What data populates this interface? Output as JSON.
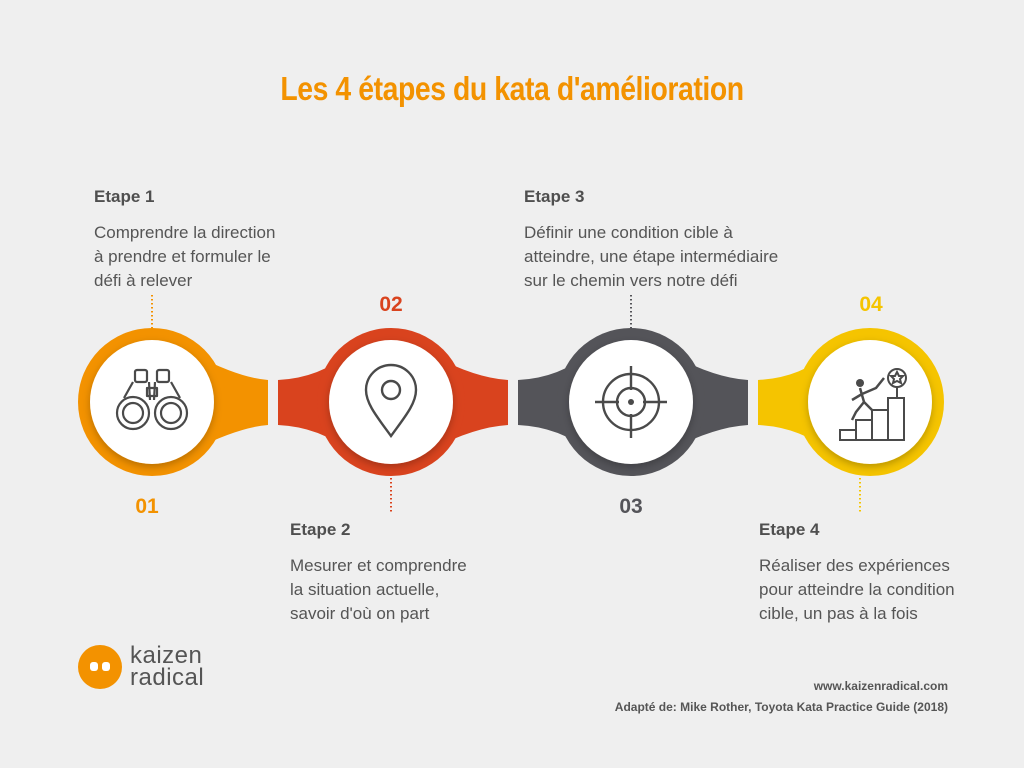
{
  "title": "Les 4 étapes du kata d'amélioration",
  "steps": [
    {
      "number": "01",
      "label": "Etape 1",
      "text": "Comprendre la direction\nà prendre et formuler le\ndéfi à relever",
      "color": "#f39200",
      "icon": "binoculars-icon"
    },
    {
      "number": "02",
      "label": "Etape 2",
      "text": "Mesurer et comprendre\nla situation actuelle,\nsavoir d'où on part",
      "color": "#d9431e",
      "icon": "location-pin-icon"
    },
    {
      "number": "03",
      "label": "Etape 3",
      "text": "Définir une condition cible à\natteindre, une étape intermédiaire\nsur le chemin vers notre défi",
      "color": "#545459",
      "icon": "target-crosshair-icon"
    },
    {
      "number": "04",
      "label": "Etape 4",
      "text": "Réaliser des expériences\npour atteindre la condition\ncible, un pas à la fois",
      "color": "#f5c400",
      "icon": "climbing-stairs-trophy-icon"
    }
  ],
  "logo": {
    "line1": "kaizen",
    "line2": "radical",
    "color": "#f39200"
  },
  "footer": {
    "website": "www.kaizenradical.com",
    "source": "Adapté de: Mike Rother, Toyota Kata Practice Guide (2018)"
  }
}
